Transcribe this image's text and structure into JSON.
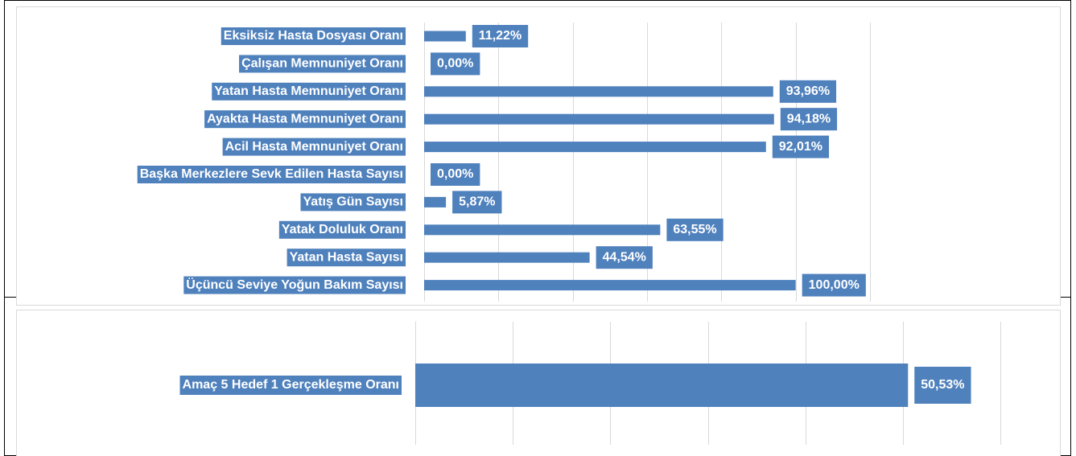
{
  "chart_data": [
    {
      "type": "bar",
      "orientation": "horizontal",
      "categories": [
        "Eksiksiz Hasta Dosyası Oranı",
        "Çalışan Memnuniyet Oranı",
        "Yatan Hasta Memnuniyet Oranı",
        "Ayakta Hasta Memnuniyet Oranı",
        "Acil Hasta Memnuniyet Oranı",
        "Başka Merkezlere Sevk Edilen Hasta Sayısı",
        "Yatış Gün Sayısı",
        "Yatak Doluluk Oranı",
        "Yatan Hasta Sayısı",
        "Üçüncü Seviye Yoğun Bakım Sayısı"
      ],
      "values": [
        11.22,
        0,
        93.96,
        94.18,
        92.01,
        0,
        5.87,
        63.55,
        44.54,
        100
      ],
      "value_labels": [
        "11,22%",
        "0,00%",
        "93,96%",
        "94,18%",
        "92,01%",
        "0,00%",
        "5,87%",
        "63,55%",
        "44,54%",
        "100,00%"
      ],
      "color": "#4f81bd",
      "xlim": [
        0,
        120
      ],
      "xticks": [
        0,
        20,
        40,
        60,
        80,
        100,
        120
      ],
      "grid": true
    },
    {
      "type": "bar",
      "orientation": "horizontal",
      "categories": [
        "Amaç 5 Hedef 1 Gerçekleşme Oranı"
      ],
      "values": [
        50.53
      ],
      "value_labels": [
        "50,53%"
      ],
      "color": "#4f81bd",
      "xlim": [
        0,
        60
      ],
      "xticks": [
        0,
        10,
        20,
        30,
        40,
        50,
        60
      ],
      "grid": true
    }
  ]
}
